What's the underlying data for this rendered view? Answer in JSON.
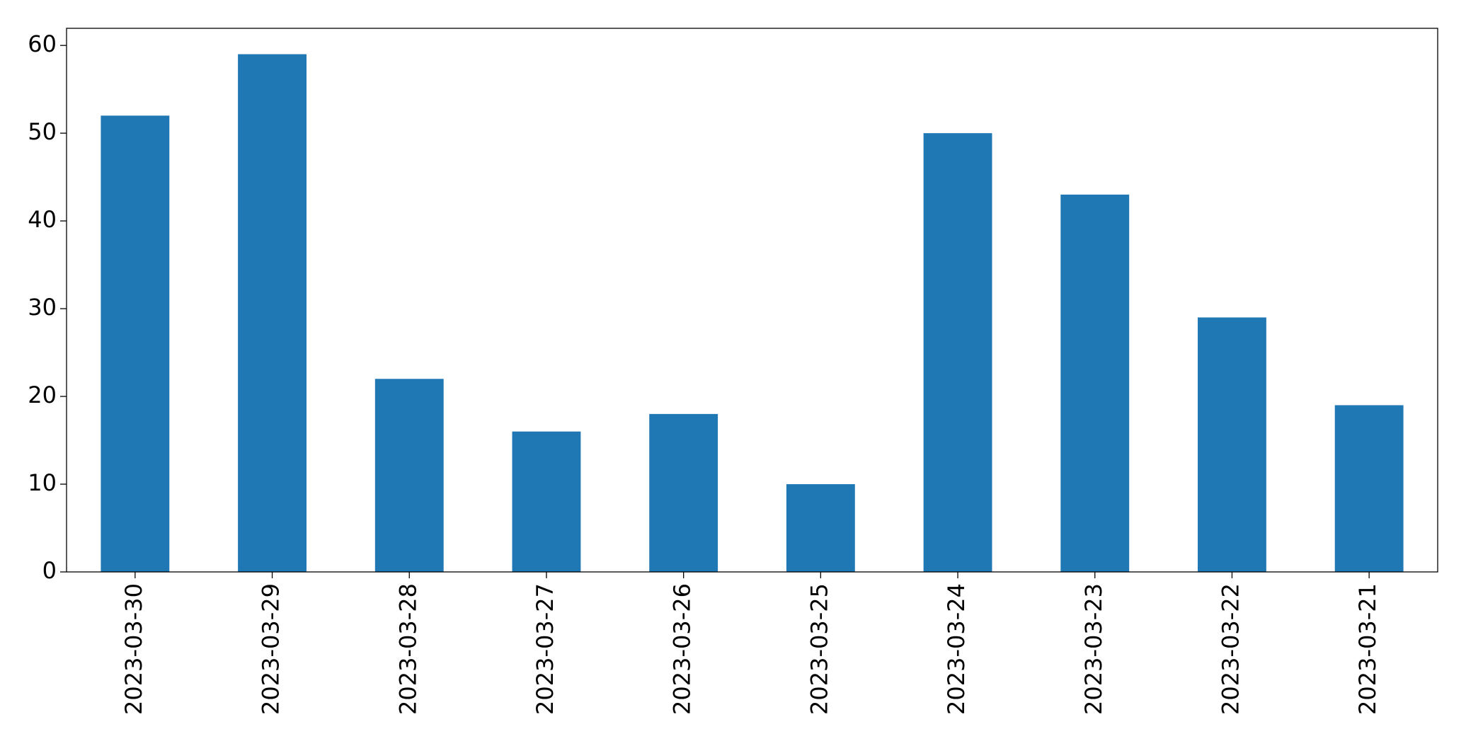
{
  "chart_data": {
    "type": "bar",
    "categories": [
      "2023-03-30",
      "2023-03-29",
      "2023-03-28",
      "2023-03-27",
      "2023-03-26",
      "2023-03-25",
      "2023-03-24",
      "2023-03-23",
      "2023-03-22",
      "2023-03-21"
    ],
    "values": [
      52,
      59,
      22,
      16,
      18,
      10,
      50,
      43,
      29,
      19
    ],
    "color": "#1f77b4",
    "ylim": [
      0,
      61.95
    ],
    "yticks": [
      0,
      10,
      20,
      30,
      40,
      50,
      60
    ],
    "grid": false
  }
}
